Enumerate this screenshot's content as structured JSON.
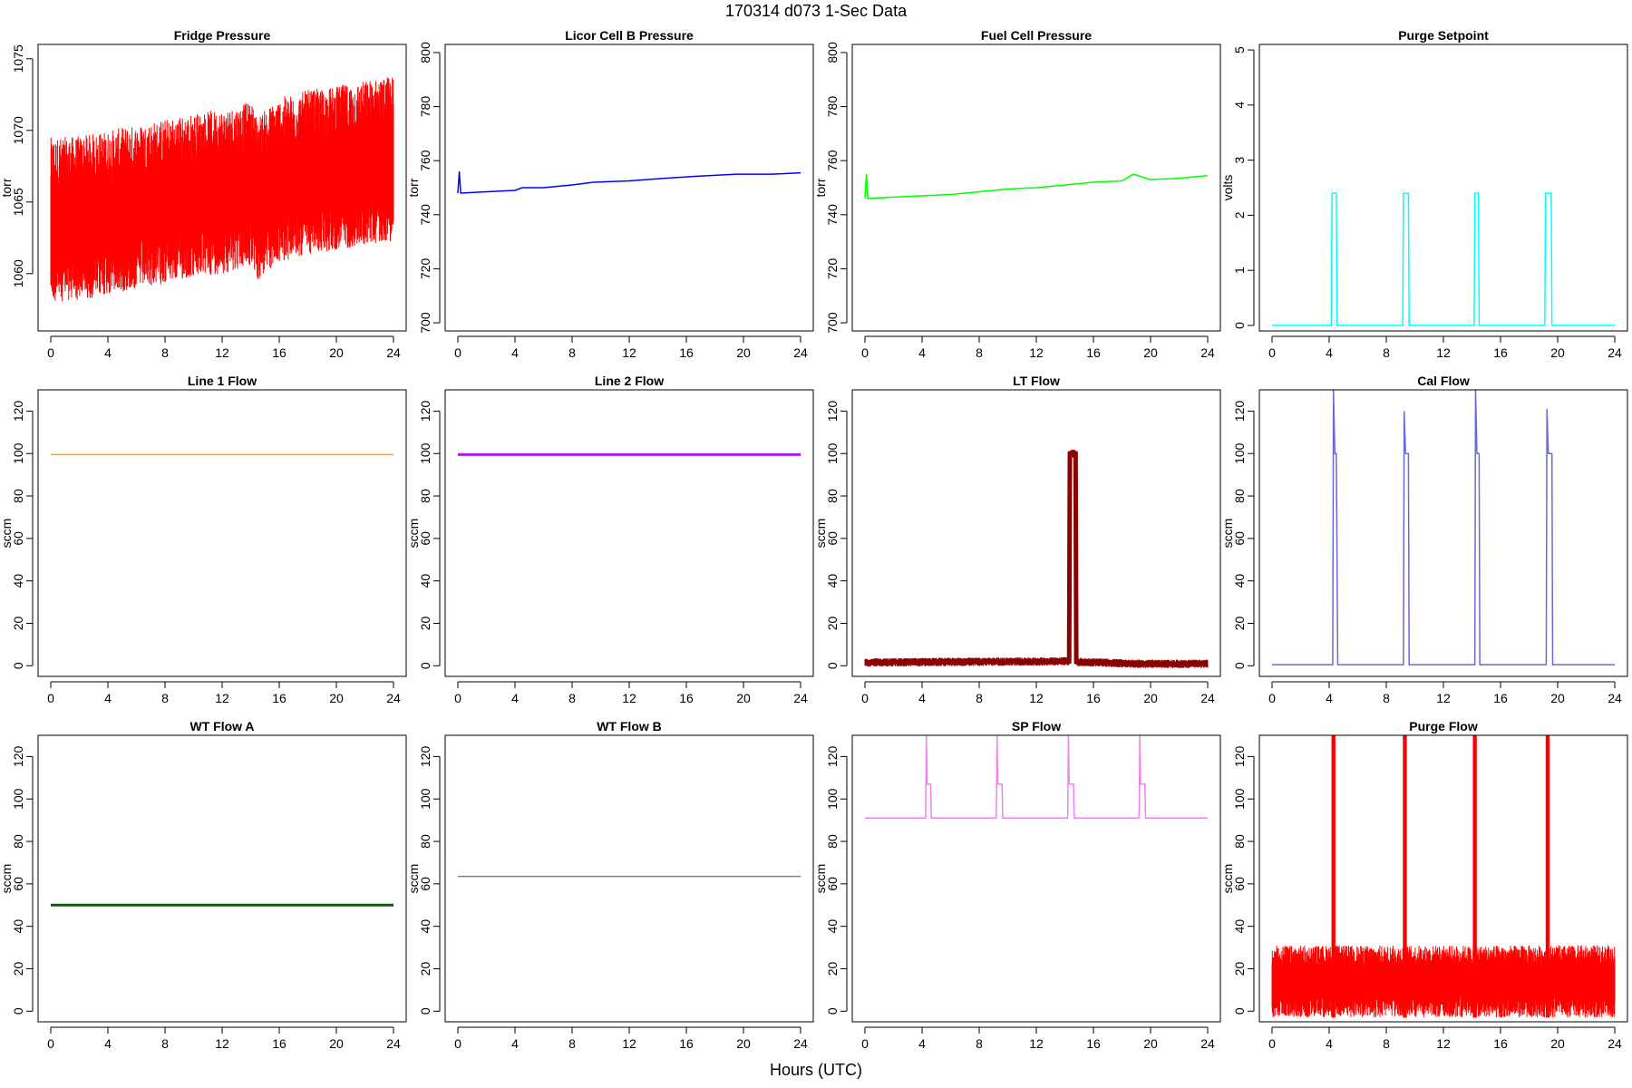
{
  "title": "170314   d073   1-Sec Data",
  "xlabel": "Hours (UTC)",
  "chart_data": [
    {
      "type": "line",
      "title": "Fridge Pressure",
      "ylabel": "torr",
      "color": "#ff0000",
      "band": true,
      "xlim": [
        0,
        24
      ],
      "ylim": [
        1056,
        1076
      ],
      "yticks": [
        1060,
        1065,
        1070,
        1075
      ],
      "xticks": [
        0,
        4,
        8,
        12,
        16,
        20,
        24
      ],
      "series": [
        {
          "x": [
            0,
            2,
            4,
            6,
            8,
            10,
            12,
            14,
            14.5,
            16,
            18,
            20,
            22,
            24
          ],
          "y": [
            1063.5,
            1063.6,
            1064,
            1064.4,
            1064.8,
            1065.2,
            1065.5,
            1066,
            1065,
            1066.3,
            1066.8,
            1067.1,
            1067.5,
            1067.8
          ]
        }
      ],
      "spread": [
        5.5,
        6
      ]
    },
    {
      "type": "line",
      "title": "Licor Cell B Pressure",
      "ylabel": "torr",
      "color": "#0000ff",
      "xlim": [
        0,
        24
      ],
      "ylim": [
        697,
        803
      ],
      "yticks": [
        700,
        720,
        740,
        760,
        780,
        800
      ],
      "xticks": [
        0,
        4,
        8,
        12,
        16,
        20,
        24
      ],
      "series": [
        {
          "x": [
            0,
            0.1,
            0.2,
            2,
            4,
            4.5,
            6,
            8,
            9.5,
            12,
            14.5,
            16,
            19.5,
            22,
            24
          ],
          "y": [
            748,
            756,
            748,
            748.5,
            749,
            750,
            750,
            751,
            752,
            752.5,
            753.5,
            754,
            755,
            755,
            755.5
          ]
        }
      ]
    },
    {
      "type": "line",
      "title": "Fuel Cell Pressure",
      "ylabel": "torr",
      "color": "#00ff00",
      "xlim": [
        0,
        24
      ],
      "ylim": [
        697,
        803
      ],
      "yticks": [
        700,
        720,
        740,
        760,
        780,
        800
      ],
      "xticks": [
        0,
        4,
        8,
        12,
        16,
        20,
        24
      ],
      "series": [
        {
          "x": [
            0,
            0.1,
            0.2,
            2,
            4,
            6,
            8,
            10,
            12,
            14,
            16,
            18,
            18.8,
            20,
            22,
            24
          ],
          "y": [
            746,
            755,
            746,
            746.5,
            747,
            747.5,
            748.5,
            749.5,
            750,
            751,
            752,
            752.5,
            755,
            753,
            753.5,
            754.5
          ]
        }
      ]
    },
    {
      "type": "line",
      "title": "Purge Setpoint",
      "ylabel": "volts",
      "color": "#00ffff",
      "xlim": [
        0,
        24
      ],
      "ylim": [
        -0.1,
        5.1
      ],
      "yticks": [
        0,
        1,
        2,
        3,
        4,
        5
      ],
      "xticks": [
        0,
        4,
        8,
        12,
        16,
        20,
        24
      ],
      "series": [
        {
          "x": [
            0,
            4.15,
            4.2,
            4.5,
            4.55,
            9.15,
            9.2,
            9.55,
            9.6,
            14.15,
            14.2,
            14.45,
            14.5,
            19.1,
            19.15,
            19.55,
            19.6,
            24
          ],
          "y": [
            0,
            0,
            2.4,
            2.4,
            0,
            0,
            2.4,
            2.4,
            0,
            0,
            2.4,
            2.4,
            0,
            0,
            2.4,
            2.4,
            0,
            0
          ]
        }
      ]
    },
    {
      "type": "line",
      "title": "Line 1 Flow",
      "ylabel": "sccm",
      "color": "#ffa500",
      "xlim": [
        0,
        24
      ],
      "ylim": [
        -5,
        130
      ],
      "yticks": [
        0,
        20,
        40,
        60,
        80,
        100,
        120
      ],
      "xticks": [
        0,
        4,
        8,
        12,
        16,
        20,
        24
      ],
      "series": [
        {
          "x": [
            0,
            24
          ],
          "y": [
            99.5,
            99.5
          ]
        }
      ]
    },
    {
      "type": "line",
      "title": "Line 2 Flow",
      "ylabel": "sccm",
      "color": "#a020f0",
      "xlim": [
        0,
        24
      ],
      "ylim": [
        -5,
        130
      ],
      "yticks": [
        0,
        20,
        40,
        60,
        80,
        100,
        120
      ],
      "xticks": [
        0,
        4,
        8,
        12,
        16,
        20,
        24
      ],
      "series": [
        {
          "x": [
            0,
            24
          ],
          "y": [
            99.5,
            99.5
          ]
        }
      ]
    },
    {
      "type": "line",
      "title": "LT Flow",
      "ylabel": "sccm",
      "color": "#8b0000",
      "band": true,
      "xlim": [
        0,
        24
      ],
      "ylim": [
        -5,
        130
      ],
      "yticks": [
        0,
        20,
        40,
        60,
        80,
        100,
        120
      ],
      "xticks": [
        0,
        4,
        8,
        12,
        16,
        20,
        24
      ],
      "series": [
        {
          "x": [
            0,
            4,
            8,
            12,
            14.3,
            14.35,
            14.75,
            14.8,
            16,
            19,
            24
          ],
          "y": [
            1.5,
            1.7,
            1.9,
            2.0,
            2.1,
            100,
            100,
            1.8,
            1.6,
            0.9,
            0.9
          ]
        }
      ],
      "spread": [
        2,
        2
      ]
    },
    {
      "type": "line",
      "title": "Cal Flow",
      "ylabel": "sccm",
      "color": "#6a6ad8",
      "xlim": [
        0,
        24
      ],
      "ylim": [
        -5,
        130
      ],
      "yticks": [
        0,
        20,
        40,
        60,
        80,
        100,
        120
      ],
      "xticks": [
        0,
        4,
        8,
        12,
        16,
        20,
        24
      ],
      "series": [
        {
          "x": [
            0,
            4.25,
            4.3,
            4.4,
            4.5,
            4.6,
            9.2,
            9.25,
            9.35,
            9.55,
            9.6,
            14.2,
            14.25,
            14.35,
            14.5,
            14.55,
            19.2,
            19.25,
            19.35,
            19.6,
            19.65,
            24
          ],
          "y": [
            0.5,
            0.5,
            130,
            100,
            100,
            0.5,
            0.5,
            120,
            100,
            100,
            0.5,
            0.5,
            130,
            100,
            100,
            0.5,
            0.5,
            121,
            100,
            100,
            0.5,
            0.5
          ]
        }
      ]
    },
    {
      "type": "line",
      "title": "WT Flow A",
      "ylabel": "sccm",
      "color": "#006400",
      "xlim": [
        0,
        24
      ],
      "ylim": [
        -5,
        130
      ],
      "yticks": [
        0,
        20,
        40,
        60,
        80,
        100,
        120
      ],
      "xticks": [
        0,
        4,
        8,
        12,
        16,
        20,
        24
      ],
      "series": [
        {
          "x": [
            0,
            24
          ],
          "y": [
            50,
            50
          ]
        }
      ]
    },
    {
      "type": "line",
      "title": "WT Flow B",
      "ylabel": "sccm",
      "color": "#808080",
      "xlim": [
        0,
        24
      ],
      "ylim": [
        -5,
        130
      ],
      "yticks": [
        0,
        20,
        40,
        60,
        80,
        100,
        120
      ],
      "xticks": [
        0,
        4,
        8,
        12,
        16,
        20,
        24
      ],
      "series": [
        {
          "x": [
            0,
            24
          ],
          "y": [
            63.5,
            63.5
          ]
        }
      ]
    },
    {
      "type": "line",
      "title": "SP Flow",
      "ylabel": "sccm",
      "color": "#ee82ee",
      "xlim": [
        0,
        24
      ],
      "ylim": [
        -5,
        130
      ],
      "yticks": [
        0,
        20,
        40,
        60,
        80,
        100,
        120
      ],
      "xticks": [
        0,
        4,
        8,
        12,
        16,
        20,
        24
      ],
      "series": [
        {
          "x": [
            0,
            4.25,
            4.3,
            4.35,
            4.6,
            4.65,
            9.2,
            9.25,
            9.3,
            9.6,
            9.65,
            14.2,
            14.25,
            14.3,
            14.6,
            14.65,
            19.2,
            19.25,
            19.3,
            19.6,
            19.65,
            24
          ],
          "y": [
            91,
            91,
            130,
            107,
            107,
            91,
            91,
            130,
            107,
            107,
            91,
            91,
            130,
            107,
            107,
            91,
            91,
            130,
            107,
            107,
            91,
            91
          ]
        }
      ]
    },
    {
      "type": "line",
      "title": "Purge Flow",
      "ylabel": "sccm",
      "color": "#ff0000",
      "band": true,
      "xlim": [
        0,
        24
      ],
      "ylim": [
        -5,
        130
      ],
      "yticks": [
        0,
        20,
        40,
        60,
        80,
        100,
        120
      ],
      "xticks": [
        0,
        4,
        8,
        12,
        16,
        20,
        24
      ],
      "series": [
        {
          "x": [
            0,
            24
          ],
          "y": [
            14,
            14
          ]
        }
      ],
      "spread": [
        17,
        17
      ],
      "spikes": [
        4.3,
        9.3,
        14.2,
        19.3
      ]
    }
  ]
}
